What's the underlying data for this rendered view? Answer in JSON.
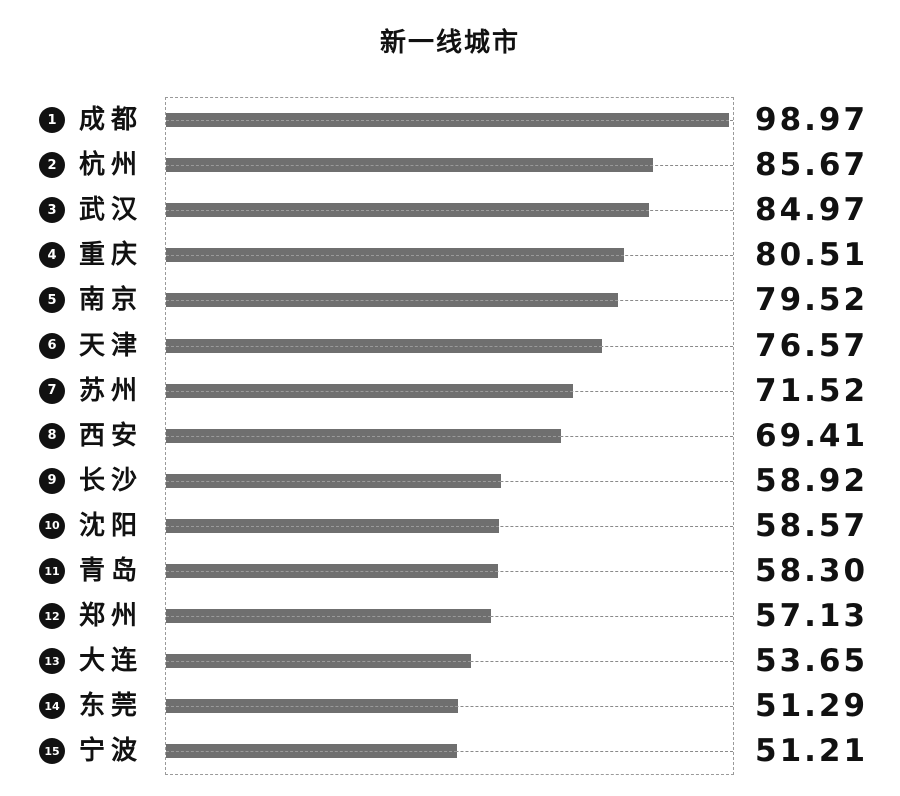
{
  "chart_data": {
    "type": "bar",
    "orientation": "horizontal",
    "title": "新一线城市",
    "xlim": [
      0,
      98.97
    ],
    "grid": false,
    "ranks": [
      "1",
      "2",
      "3",
      "4",
      "5",
      "6",
      "7",
      "8",
      "9",
      "10",
      "11",
      "12",
      "13",
      "14",
      "15"
    ],
    "categories": [
      "成都",
      "杭州",
      "武汉",
      "重庆",
      "南京",
      "天津",
      "苏州",
      "西安",
      "长沙",
      "沈阳",
      "青岛",
      "郑州",
      "大连",
      "东莞",
      "宁波"
    ],
    "values": [
      98.97,
      85.67,
      84.97,
      80.51,
      79.52,
      76.57,
      71.52,
      69.41,
      58.92,
      58.57,
      58.3,
      57.13,
      53.65,
      51.29,
      51.21
    ],
    "value_labels": [
      "98.97",
      "85.67",
      "84.97",
      "80.51",
      "79.52",
      "76.57",
      "71.52",
      "69.41",
      "58.92",
      "58.57",
      "58.30",
      "57.13",
      "53.65",
      "51.29",
      "51.21"
    ],
    "bar_color": "#6f6f6f"
  }
}
